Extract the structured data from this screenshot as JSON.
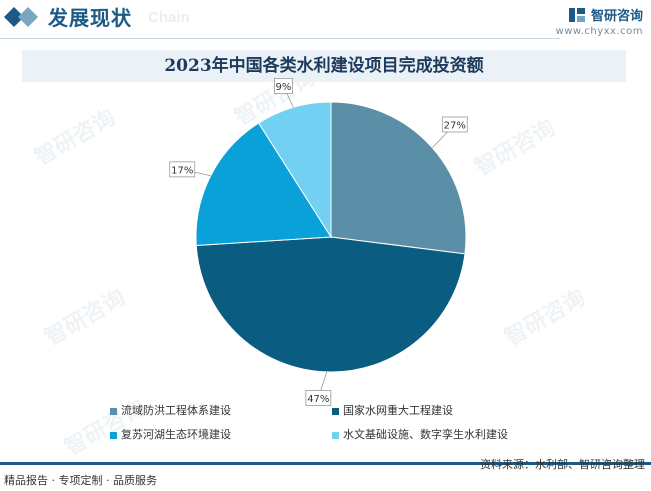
{
  "header": {
    "section_title": "发展现状",
    "section_subtitle": "Chain",
    "brand_name": "智研咨询",
    "brand_url": "www.chyxx.com"
  },
  "watermark_text": "智研咨询",
  "footer": {
    "left_text": "精品报告 · 专项定制 · 品质服务",
    "source_text": "资料来源：水利部、智研咨询整理"
  },
  "colors": {
    "brand": "#1b5a86",
    "slice_flood": "#5b8fa8",
    "slice_network": "#0a5c80",
    "slice_river": "#0aa0d8",
    "slice_digital": "#72d0f2"
  },
  "chart_data": {
    "type": "pie",
    "title": "2023年中国各类水利建设项目完成投资额",
    "unit": "%",
    "slices": [
      {
        "name": "流域防洪工程体系建设",
        "value": 27,
        "label": "27%",
        "color": "#5b8fa8"
      },
      {
        "name": "国家水网重大工程建设",
        "value": 47,
        "label": "47%",
        "color": "#0a5c80"
      },
      {
        "name": "复苏河湖生态环境建设",
        "value": 17,
        "label": "17%",
        "color": "#0aa0d8"
      },
      {
        "name": "水文基础设施、数字孪生水利建设",
        "value": 9,
        "label": "9%",
        "color": "#72d0f2"
      }
    ],
    "legend_position": "bottom"
  }
}
